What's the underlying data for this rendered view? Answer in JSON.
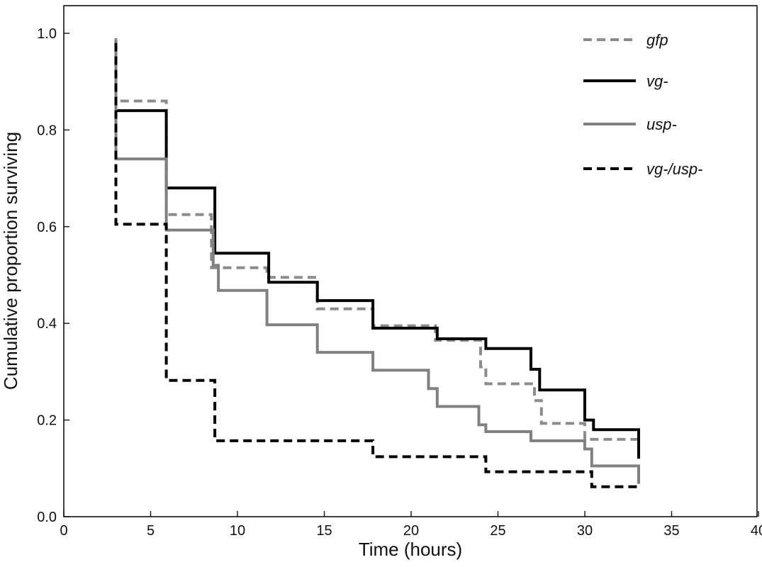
{
  "chart_data": {
    "type": "line",
    "subtype": "kaplan-meier step",
    "title": "",
    "xlabel": "Time (hours)",
    "ylabel": "Cumulative proportion surviving",
    "xlim": [
      0,
      40
    ],
    "ylim": [
      0.0,
      1.05
    ],
    "xticks": [
      0,
      5,
      10,
      15,
      20,
      25,
      30,
      35,
      40
    ],
    "yticks": [
      0.0,
      0.2,
      0.4,
      0.6,
      0.8,
      1.0
    ],
    "xtick_labels": [
      "0",
      "5",
      "10",
      "15",
      "20",
      "25",
      "30",
      "35",
      "40"
    ],
    "ytick_labels": [
      "0.0",
      "0.2",
      "0.4",
      "0.6",
      "0.8",
      "1.0"
    ],
    "grid": false,
    "legend_position": "top-right",
    "series": [
      {
        "name": "gfp",
        "color": "#8c8c8c",
        "dashed": true,
        "steps": [
          [
            3,
            0.99
          ],
          [
            3,
            0.86
          ],
          [
            5.9,
            0.86
          ],
          [
            5.9,
            0.625
          ],
          [
            8.5,
            0.625
          ],
          [
            8.5,
            0.515
          ],
          [
            11.7,
            0.515
          ],
          [
            11.7,
            0.495
          ],
          [
            14.6,
            0.495
          ],
          [
            14.6,
            0.43
          ],
          [
            17.8,
            0.43
          ],
          [
            17.8,
            0.395
          ],
          [
            21.4,
            0.395
          ],
          [
            21.4,
            0.365
          ],
          [
            24.0,
            0.365
          ],
          [
            24.0,
            0.31
          ],
          [
            24.3,
            0.31
          ],
          [
            24.3,
            0.275
          ],
          [
            27.1,
            0.275
          ],
          [
            27.1,
            0.24
          ],
          [
            27.5,
            0.24
          ],
          [
            27.5,
            0.193
          ],
          [
            30.0,
            0.193
          ],
          [
            30.0,
            0.16
          ],
          [
            33.1,
            0.16
          ]
        ]
      },
      {
        "name": "vg-",
        "color": "#000000",
        "dashed": false,
        "steps": [
          [
            3,
            0.985
          ],
          [
            3,
            0.84
          ],
          [
            5.9,
            0.84
          ],
          [
            5.9,
            0.68
          ],
          [
            8.7,
            0.68
          ],
          [
            8.7,
            0.545
          ],
          [
            11.8,
            0.545
          ],
          [
            11.8,
            0.485
          ],
          [
            14.6,
            0.485
          ],
          [
            14.6,
            0.447
          ],
          [
            17.8,
            0.447
          ],
          [
            17.8,
            0.39
          ],
          [
            21.5,
            0.39
          ],
          [
            21.5,
            0.368
          ],
          [
            24.3,
            0.368
          ],
          [
            24.3,
            0.348
          ],
          [
            26.9,
            0.348
          ],
          [
            26.9,
            0.305
          ],
          [
            27.4,
            0.305
          ],
          [
            27.4,
            0.262
          ],
          [
            30.0,
            0.262
          ],
          [
            30.0,
            0.2
          ],
          [
            30.5,
            0.2
          ],
          [
            30.5,
            0.18
          ],
          [
            33.1,
            0.18
          ],
          [
            33.1,
            0.12
          ]
        ]
      },
      {
        "name": "usp-",
        "color": "#808080",
        "dashed": false,
        "steps": [
          [
            3,
            0.985
          ],
          [
            3,
            0.74
          ],
          [
            5.9,
            0.74
          ],
          [
            5.9,
            0.593
          ],
          [
            8.6,
            0.593
          ],
          [
            8.6,
            0.52
          ],
          [
            8.9,
            0.52
          ],
          [
            8.9,
            0.468
          ],
          [
            11.7,
            0.468
          ],
          [
            11.7,
            0.397
          ],
          [
            14.6,
            0.397
          ],
          [
            14.6,
            0.34
          ],
          [
            17.8,
            0.34
          ],
          [
            17.8,
            0.303
          ],
          [
            21.0,
            0.303
          ],
          [
            21.0,
            0.265
          ],
          [
            21.5,
            0.265
          ],
          [
            21.5,
            0.228
          ],
          [
            23.9,
            0.228
          ],
          [
            23.9,
            0.19
          ],
          [
            24.3,
            0.19
          ],
          [
            24.3,
            0.176
          ],
          [
            26.9,
            0.176
          ],
          [
            26.9,
            0.157
          ],
          [
            30.0,
            0.157
          ],
          [
            30.0,
            0.14
          ],
          [
            30.4,
            0.14
          ],
          [
            30.4,
            0.105
          ],
          [
            33.1,
            0.105
          ],
          [
            33.1,
            0.068
          ]
        ]
      },
      {
        "name": "vg-/usp-",
        "color": "#000000",
        "dashed": true,
        "steps": [
          [
            3,
            0.98
          ],
          [
            3,
            0.605
          ],
          [
            5.9,
            0.605
          ],
          [
            5.9,
            0.282
          ],
          [
            8.7,
            0.282
          ],
          [
            8.7,
            0.157
          ],
          [
            17.8,
            0.157
          ],
          [
            17.8,
            0.124
          ],
          [
            24.3,
            0.124
          ],
          [
            24.3,
            0.093
          ],
          [
            30.4,
            0.093
          ],
          [
            30.4,
            0.062
          ],
          [
            33.1,
            0.062
          ]
        ]
      }
    ]
  }
}
